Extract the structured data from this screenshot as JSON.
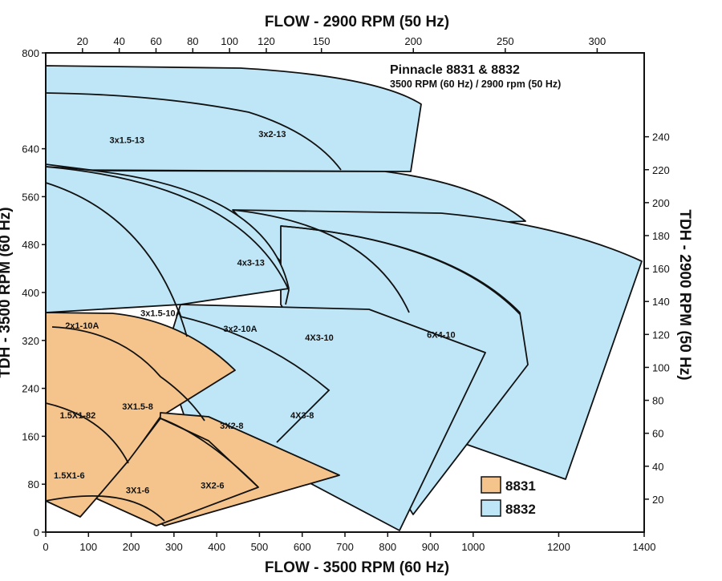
{
  "chart_data": {
    "type": "area",
    "title": "Pinnacle 8831 & 8832",
    "subtitle": "3500 RPM (60 Hz)  / 2900 rpm (50 Hz)",
    "xlabel_bottom": "FLOW - 3500 RPM (60 Hz)",
    "xlabel_top": "FLOW - 2900 RPM (50 Hz)",
    "ylabel_left": "TDH - 3500 RPM (60 Hz)",
    "ylabel_right": "TDH - 2900 RPM (50 Hz)",
    "xlim_bottom": [
      0,
      1400
    ],
    "ylim_left": [
      0,
      800
    ],
    "xticks_bottom": [
      "0",
      "100",
      "200",
      "300",
      "400",
      "500",
      "600",
      "700",
      "800",
      "900",
      "1000",
      "1200",
      "1400"
    ],
    "xticks_top": [
      "20",
      "40",
      "60",
      "80",
      "100",
      "120",
      "150",
      "200",
      "250",
      "300"
    ],
    "yticks_left": [
      "0",
      "80",
      "160",
      "240",
      "320",
      "400",
      "480",
      "560",
      "640",
      "800"
    ],
    "yticks_right": [
      "20",
      "40",
      "60",
      "80",
      "100",
      "120",
      "140",
      "160",
      "180",
      "200",
      "220",
      "240"
    ],
    "colors": {
      "8831": "#f5c48c",
      "8832": "#bfe6f7",
      "outline": "#111111"
    },
    "legend": [
      {
        "name": "8831",
        "color": "#f5c48c"
      },
      {
        "name": "8832",
        "color": "#bfe6f7"
      }
    ],
    "pump_models": [
      {
        "name": "3x1.5-13",
        "series": "8832",
        "label_at": [
          190,
          655
        ]
      },
      {
        "name": "3x2-13",
        "series": "8832",
        "label_at": [
          530,
          665
        ]
      },
      {
        "name": "4x3-13",
        "series": "8832",
        "label_at": [
          480,
          450
        ]
      },
      {
        "name": "2x1-10A",
        "series": "8832",
        "label_at": [
          85,
          345
        ]
      },
      {
        "name": "3x1.5-10A",
        "series": "8832",
        "label_at": [
          270,
          366
        ]
      },
      {
        "name": "3x2-10A",
        "series": "8832",
        "label_at": [
          455,
          340
        ]
      },
      {
        "name": "4X3-10",
        "series": "8832",
        "label_at": [
          640,
          325
        ]
      },
      {
        "name": "6X4-10",
        "series": "8832",
        "label_at": [
          925,
          330
        ]
      },
      {
        "name": "3X2-8",
        "series": "8832",
        "label_at": [
          435,
          178
        ]
      },
      {
        "name": "4X3-8",
        "series": "8832",
        "label_at": [
          600,
          195
        ]
      },
      {
        "name": "1.5X1-82",
        "series": "8831",
        "label_at": [
          75,
          195
        ]
      },
      {
        "name": "3X1.5-8",
        "series": "8831",
        "label_at": [
          215,
          210
        ]
      },
      {
        "name": "1.5X1-6",
        "series": "8831",
        "label_at": [
          55,
          95
        ]
      },
      {
        "name": "3X1-6",
        "series": "8831",
        "label_at": [
          215,
          70
        ]
      },
      {
        "name": "3X2-6",
        "series": "8831",
        "label_at": [
          390,
          78
        ]
      }
    ]
  }
}
